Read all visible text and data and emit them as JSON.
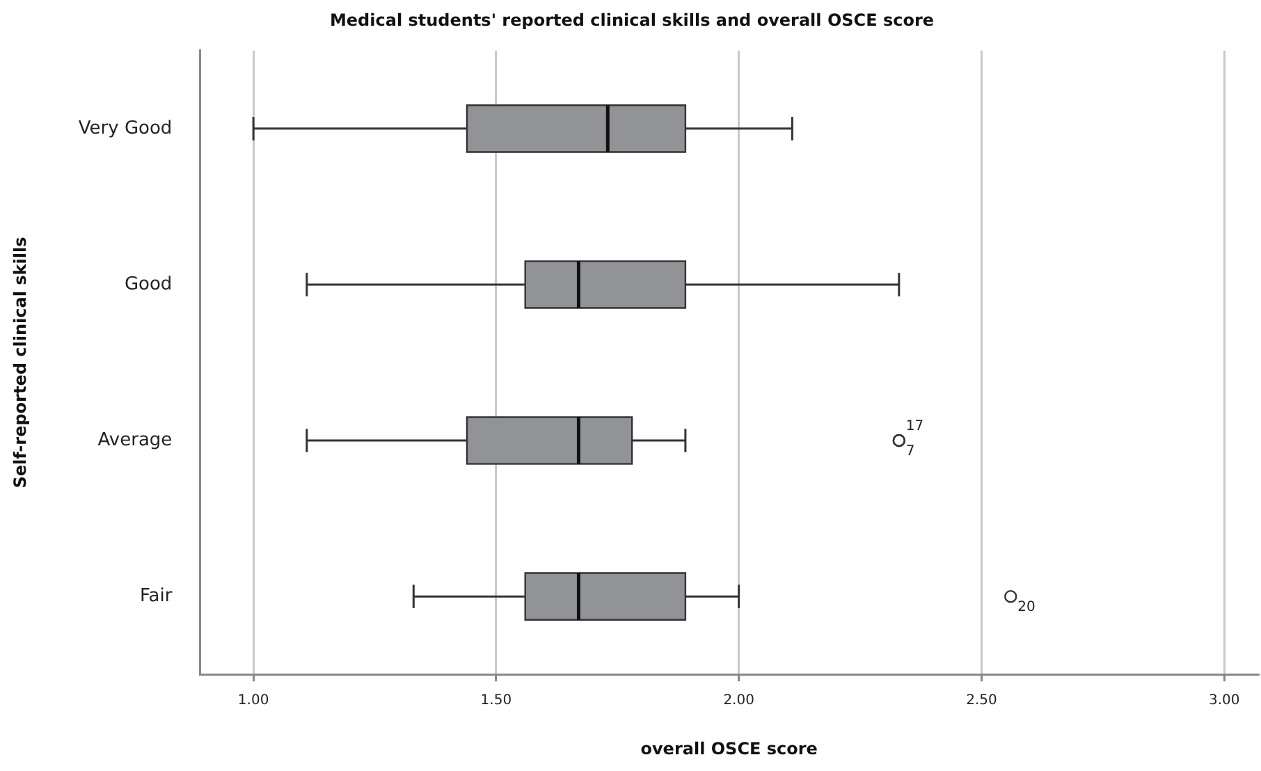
{
  "chart_data": {
    "type": "box",
    "title": "Medical students' reported clinical skills and overall OSCE score",
    "xlabel": "overall OSCE score",
    "ylabel": "Self-reported clinical skills",
    "orientation": "horizontal",
    "categories": [
      "Very Good",
      "Good",
      "Average",
      "Fair"
    ],
    "color": "#929396",
    "boxes": [
      {
        "low": 1.0,
        "q1": 1.44,
        "median": 1.73,
        "q3": 1.89,
        "high": 2.11
      },
      {
        "low": 1.11,
        "q1": 1.56,
        "median": 1.67,
        "q3": 1.89,
        "high": 2.33
      },
      {
        "low": 1.11,
        "q1": 1.44,
        "median": 1.67,
        "q3": 1.78,
        "high": 1.89,
        "outliers": [
          2.33,
          2.33
        ]
      },
      {
        "low": 1.33,
        "q1": 1.56,
        "median": 1.67,
        "q3": 1.89,
        "high": 2.0,
        "outliers": [
          2.56
        ]
      }
    ],
    "xlim": [
      0.89,
      3.07
    ],
    "xticks": [
      {
        "value": 1,
        "label": "1.00"
      },
      {
        "value": 1.5,
        "label": "1.50"
      },
      {
        "value": 2,
        "label": "2.00"
      },
      {
        "value": 2.5,
        "label": "2.50"
      },
      {
        "value": 3,
        "label": "3.00"
      }
    ],
    "grid": "x",
    "annotations": [
      "17",
      "7",
      "20"
    ]
  }
}
